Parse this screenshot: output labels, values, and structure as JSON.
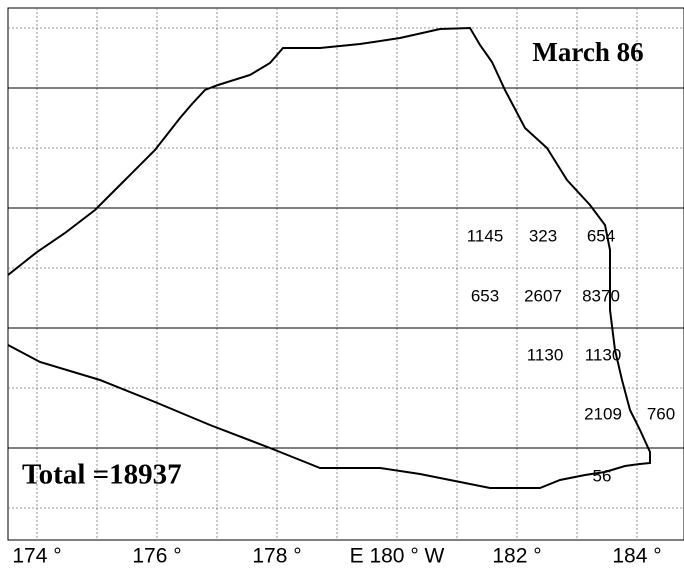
{
  "map": {
    "title": "March 86",
    "total": "Total =18937",
    "x_axis_labels": [
      "174 °",
      "176 °",
      "178 °",
      "E 180 ° W",
      "182 °",
      "184 °"
    ],
    "cells": [
      [
        1145,
        323,
        654
      ],
      [
        653,
        2607,
        8370
      ],
      [
        1130,
        1130
      ],
      [
        2109,
        760
      ],
      [
        56
      ]
    ]
  }
}
